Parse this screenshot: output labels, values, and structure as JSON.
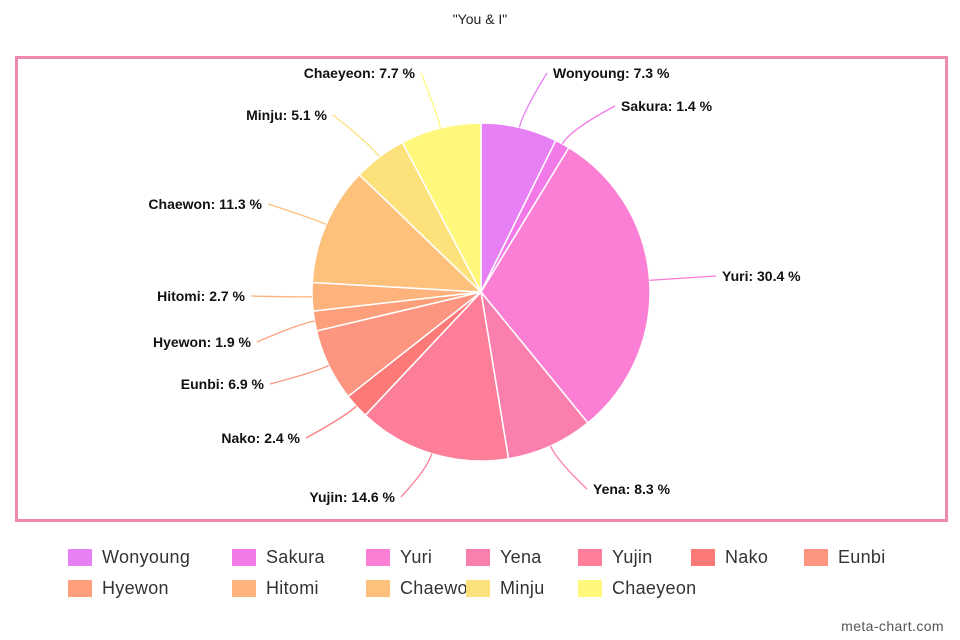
{
  "chart_data": {
    "type": "pie",
    "title": "\"You & I\"",
    "label_format": "{name}: {value} %",
    "slices": [
      {
        "name": "Wonyoung",
        "value": 7.3,
        "color": "#e880f5"
      },
      {
        "name": "Sakura",
        "value": 1.4,
        "color": "#f27ae8"
      },
      {
        "name": "Yuri",
        "value": 30.4,
        "color": "#fb7fd5"
      },
      {
        "name": "Yena",
        "value": 8.3,
        "color": "#fa7fae"
      },
      {
        "name": "Yujin",
        "value": 14.6,
        "color": "#fc7e98"
      },
      {
        "name": "Nako",
        "value": 2.4,
        "color": "#fb7a78"
      },
      {
        "name": "Eunbi",
        "value": 6.9,
        "color": "#fd9580"
      },
      {
        "name": "Hyewon",
        "value": 1.9,
        "color": "#fd9f7a"
      },
      {
        "name": "Hitomi",
        "value": 2.7,
        "color": "#feb27c"
      },
      {
        "name": "Chaewon",
        "value": 11.3,
        "color": "#fdc17c"
      },
      {
        "name": "Minju",
        "value": 5.1,
        "color": "#fde27c"
      },
      {
        "name": "Chaeyeon",
        "value": 7.7,
        "color": "#fff87c"
      }
    ],
    "legend_position": "bottom"
  },
  "watermark": "meta-chart.com"
}
